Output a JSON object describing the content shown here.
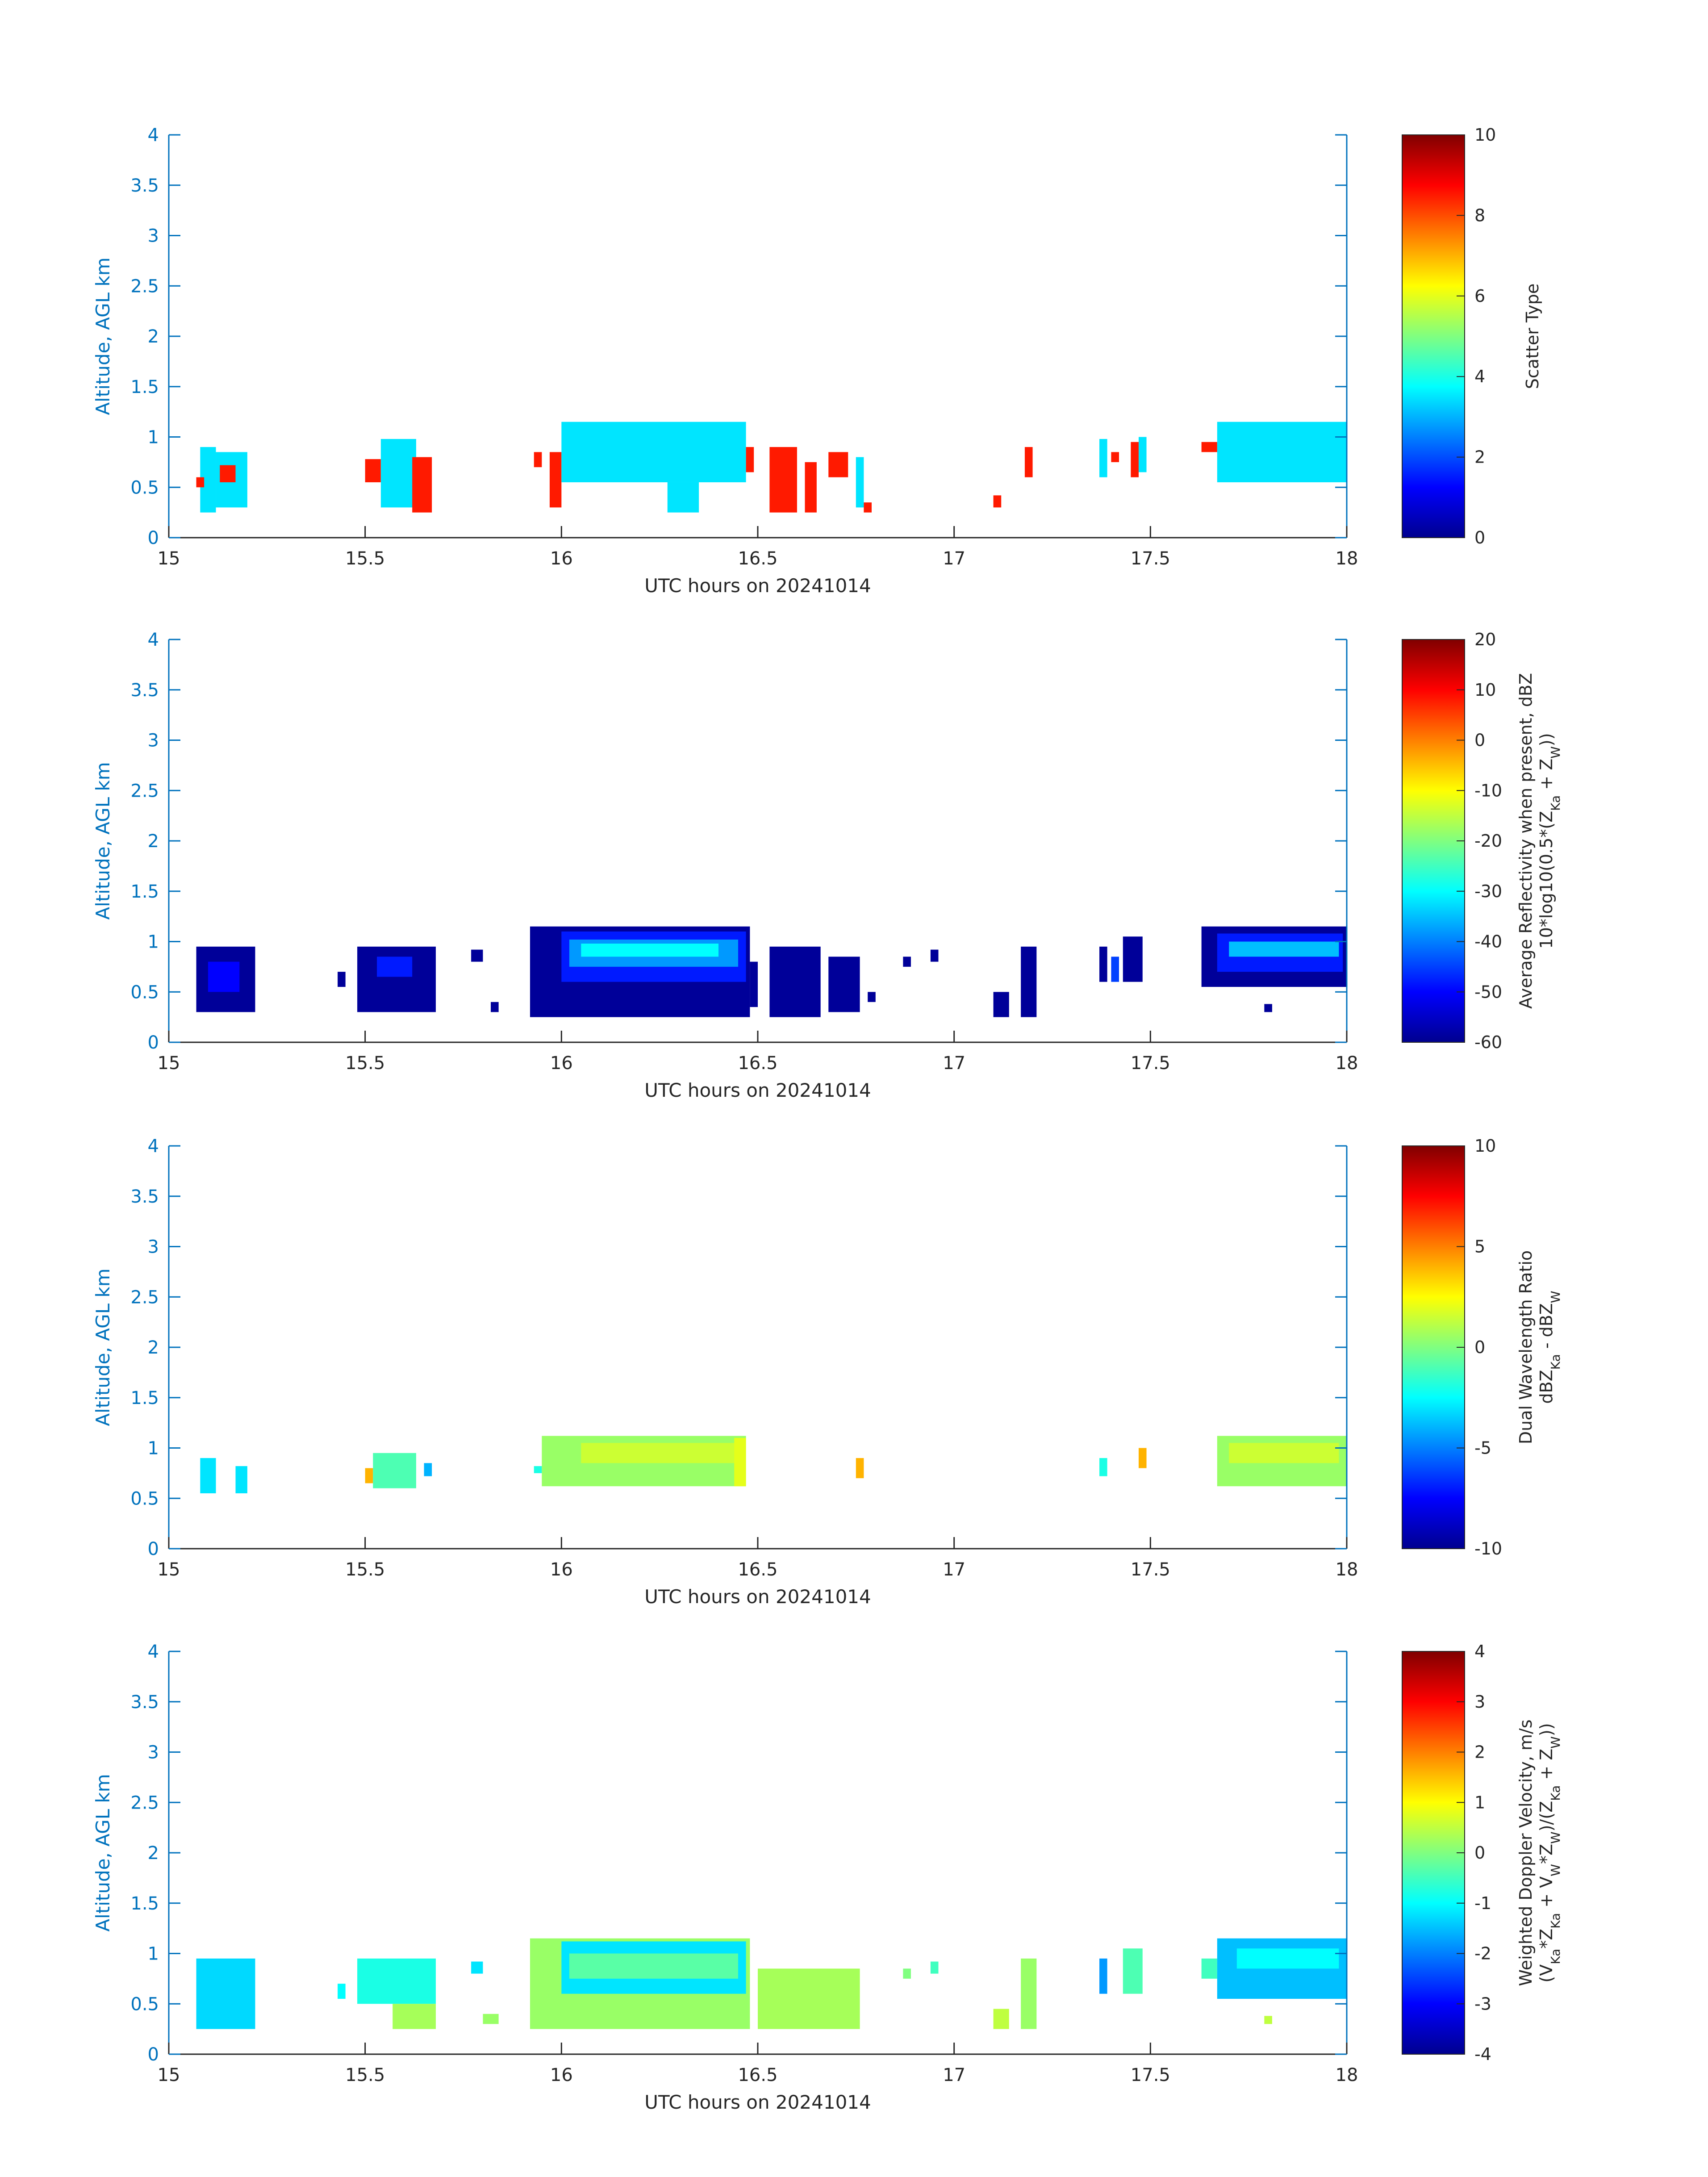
{
  "chart_data": [
    {
      "type": "heatmap",
      "xlabel": "UTC hours on 20241014",
      "ylabel": "Altitude, AGL km",
      "xlim": [
        15,
        18
      ],
      "ylim": [
        0,
        4
      ],
      "xticks": [
        "15",
        "15.5",
        "16",
        "16.5",
        "17",
        "17.5",
        "18"
      ],
      "yticks": [
        "0",
        "0.5",
        "1",
        "1.5",
        "2",
        "2.5",
        "3",
        "3.5",
        "4"
      ],
      "colorbar": {
        "label_lines": [
          "Scatter Type"
        ],
        "clim": [
          0,
          10
        ],
        "ticks": [
          "0",
          "2",
          "4",
          "6",
          "8",
          "10"
        ],
        "colormap": "jet"
      },
      "cells": [
        {
          "x0": 15.08,
          "x1": 15.12,
          "y0": 0.25,
          "y1": 0.9,
          "v": 3.5
        },
        {
          "x0": 15.12,
          "x1": 15.2,
          "y0": 0.3,
          "y1": 0.85,
          "v": 3.5
        },
        {
          "x0": 15.07,
          "x1": 15.09,
          "y0": 0.5,
          "y1": 0.6,
          "v": 8.5
        },
        {
          "x0": 15.13,
          "x1": 15.17,
          "y0": 0.55,
          "y1": 0.72,
          "v": 8.5
        },
        {
          "x0": 15.5,
          "x1": 15.54,
          "y0": 0.55,
          "y1": 0.78,
          "v": 8.5
        },
        {
          "x0": 15.54,
          "x1": 15.63,
          "y0": 0.3,
          "y1": 0.98,
          "v": 3.5
        },
        {
          "x0": 15.62,
          "x1": 15.67,
          "y0": 0.25,
          "y1": 0.8,
          "v": 8.5
        },
        {
          "x0": 15.93,
          "x1": 15.95,
          "y0": 0.7,
          "y1": 0.85,
          "v": 8.5
        },
        {
          "x0": 15.97,
          "x1": 16.0,
          "y0": 0.3,
          "y1": 0.85,
          "v": 8.5
        },
        {
          "x0": 16.0,
          "x1": 16.47,
          "y0": 0.55,
          "y1": 1.15,
          "v": 3.5
        },
        {
          "x0": 16.27,
          "x1": 16.35,
          "y0": 0.25,
          "y1": 0.55,
          "v": 3.5
        },
        {
          "x0": 16.47,
          "x1": 16.49,
          "y0": 0.65,
          "y1": 0.9,
          "v": 8.5
        },
        {
          "x0": 16.53,
          "x1": 16.6,
          "y0": 0.25,
          "y1": 0.9,
          "v": 8.5
        },
        {
          "x0": 16.62,
          "x1": 16.65,
          "y0": 0.25,
          "y1": 0.75,
          "v": 8.5
        },
        {
          "x0": 16.68,
          "x1": 16.73,
          "y0": 0.6,
          "y1": 0.85,
          "v": 8.5
        },
        {
          "x0": 16.77,
          "x1": 16.79,
          "y0": 0.25,
          "y1": 0.35,
          "v": 8.5
        },
        {
          "x0": 16.75,
          "x1": 16.77,
          "y0": 0.3,
          "y1": 0.8,
          "v": 3.5
        },
        {
          "x0": 17.1,
          "x1": 17.12,
          "y0": 0.3,
          "y1": 0.42,
          "v": 8.5
        },
        {
          "x0": 17.18,
          "x1": 17.2,
          "y0": 0.6,
          "y1": 0.9,
          "v": 8.5
        },
        {
          "x0": 17.37,
          "x1": 17.39,
          "y0": 0.6,
          "y1": 0.98,
          "v": 3.5
        },
        {
          "x0": 17.4,
          "x1": 17.42,
          "y0": 0.75,
          "y1": 0.85,
          "v": 8.5
        },
        {
          "x0": 17.45,
          "x1": 17.47,
          "y0": 0.6,
          "y1": 0.95,
          "v": 8.5
        },
        {
          "x0": 17.47,
          "x1": 17.49,
          "y0": 0.65,
          "y1": 1.0,
          "v": 3.5
        },
        {
          "x0": 17.63,
          "x1": 17.67,
          "y0": 0.85,
          "y1": 0.95,
          "v": 8.5
        },
        {
          "x0": 17.67,
          "x1": 18.0,
          "y0": 0.55,
          "y1": 1.15,
          "v": 3.5
        }
      ]
    },
    {
      "type": "heatmap",
      "xlabel": "UTC hours on 20241014",
      "ylabel": "Altitude, AGL km",
      "xlim": [
        15,
        18
      ],
      "ylim": [
        0,
        4
      ],
      "xticks": [
        "15",
        "15.5",
        "16",
        "16.5",
        "17",
        "17.5",
        "18"
      ],
      "yticks": [
        "0",
        "0.5",
        "1",
        "1.5",
        "2",
        "2.5",
        "3",
        "3.5",
        "4"
      ],
      "colorbar": {
        "label_lines": [
          "Average Reflectivity when present, dBZ",
          "10*log10(0.5*(Z_Ka + Z_W))"
        ],
        "clim": [
          -60,
          20
        ],
        "ticks": [
          "-60",
          "-50",
          "-40",
          "-30",
          "-20",
          "-10",
          "0",
          "10",
          "20"
        ],
        "colormap": "jet"
      },
      "cells": [
        {
          "x0": 15.07,
          "x1": 15.22,
          "y0": 0.3,
          "y1": 0.95,
          "v": -58
        },
        {
          "x0": 15.1,
          "x1": 15.18,
          "y0": 0.5,
          "y1": 0.8,
          "v": -50
        },
        {
          "x0": 15.43,
          "x1": 15.45,
          "y0": 0.55,
          "y1": 0.7,
          "v": -58
        },
        {
          "x0": 15.48,
          "x1": 15.68,
          "y0": 0.3,
          "y1": 0.95,
          "v": -58
        },
        {
          "x0": 15.53,
          "x1": 15.62,
          "y0": 0.65,
          "y1": 0.85,
          "v": -48
        },
        {
          "x0": 15.77,
          "x1": 15.8,
          "y0": 0.8,
          "y1": 0.92,
          "v": -58
        },
        {
          "x0": 15.82,
          "x1": 15.84,
          "y0": 0.3,
          "y1": 0.4,
          "v": -58
        },
        {
          "x0": 15.92,
          "x1": 16.48,
          "y0": 0.25,
          "y1": 1.15,
          "v": -58
        },
        {
          "x0": 16.0,
          "x1": 16.47,
          "y0": 0.6,
          "y1": 1.1,
          "v": -48
        },
        {
          "x0": 16.02,
          "x1": 16.45,
          "y0": 0.75,
          "y1": 1.02,
          "v": -38
        },
        {
          "x0": 16.05,
          "x1": 16.4,
          "y0": 0.85,
          "y1": 0.98,
          "v": -30
        },
        {
          "x0": 16.48,
          "x1": 16.5,
          "y0": 0.35,
          "y1": 0.8,
          "v": -58
        },
        {
          "x0": 16.53,
          "x1": 16.66,
          "y0": 0.25,
          "y1": 0.95,
          "v": -58
        },
        {
          "x0": 16.68,
          "x1": 16.76,
          "y0": 0.3,
          "y1": 0.85,
          "v": -58
        },
        {
          "x0": 16.78,
          "x1": 16.8,
          "y0": 0.4,
          "y1": 0.5,
          "v": -58
        },
        {
          "x0": 16.87,
          "x1": 16.89,
          "y0": 0.75,
          "y1": 0.85,
          "v": -58
        },
        {
          "x0": 16.94,
          "x1": 16.96,
          "y0": 0.8,
          "y1": 0.92,
          "v": -58
        },
        {
          "x0": 17.1,
          "x1": 17.14,
          "y0": 0.25,
          "y1": 0.5,
          "v": -58
        },
        {
          "x0": 17.17,
          "x1": 17.21,
          "y0": 0.25,
          "y1": 0.95,
          "v": -58
        },
        {
          "x0": 17.37,
          "x1": 17.39,
          "y0": 0.6,
          "y1": 0.95,
          "v": -58
        },
        {
          "x0": 17.4,
          "x1": 17.42,
          "y0": 0.6,
          "y1": 0.85,
          "v": -45
        },
        {
          "x0": 17.43,
          "x1": 17.48,
          "y0": 0.6,
          "y1": 1.05,
          "v": -58
        },
        {
          "x0": 17.63,
          "x1": 18.0,
          "y0": 0.55,
          "y1": 1.15,
          "v": -58
        },
        {
          "x0": 17.67,
          "x1": 17.99,
          "y0": 0.7,
          "y1": 1.08,
          "v": -48
        },
        {
          "x0": 17.7,
          "x1": 17.98,
          "y0": 0.85,
          "y1": 1.0,
          "v": -35
        },
        {
          "x0": 17.79,
          "x1": 17.81,
          "y0": 0.3,
          "y1": 0.38,
          "v": -58
        }
      ]
    },
    {
      "type": "heatmap",
      "xlabel": "UTC hours on 20241014",
      "ylabel": "Altitude, AGL km",
      "xlim": [
        15,
        18
      ],
      "ylim": [
        0,
        4
      ],
      "xticks": [
        "15",
        "15.5",
        "16",
        "16.5",
        "17",
        "17.5",
        "18"
      ],
      "yticks": [
        "0",
        "0.5",
        "1",
        "1.5",
        "2",
        "2.5",
        "3",
        "3.5",
        "4"
      ],
      "colorbar": {
        "label_lines": [
          "Dual Wavelength Ratio",
          "dBZ_Ka - dBZ_W"
        ],
        "clim": [
          -10,
          10
        ],
        "ticks": [
          "-10",
          "-5",
          "0",
          "5",
          "10"
        ],
        "colormap": "jet"
      },
      "cells": [
        {
          "x0": 15.08,
          "x1": 15.12,
          "y0": 0.55,
          "y1": 0.9,
          "v": -3
        },
        {
          "x0": 15.17,
          "x1": 15.2,
          "y0": 0.55,
          "y1": 0.82,
          "v": -3
        },
        {
          "x0": 15.5,
          "x1": 15.52,
          "y0": 0.65,
          "y1": 0.8,
          "v": 4
        },
        {
          "x0": 15.52,
          "x1": 15.63,
          "y0": 0.6,
          "y1": 0.95,
          "v": -1
        },
        {
          "x0": 15.65,
          "x1": 15.67,
          "y0": 0.72,
          "y1": 0.85,
          "v": -4
        },
        {
          "x0": 15.93,
          "x1": 15.95,
          "y0": 0.75,
          "y1": 0.82,
          "v": -2
        },
        {
          "x0": 15.95,
          "x1": 16.47,
          "y0": 0.62,
          "y1": 1.12,
          "v": 0.5
        },
        {
          "x0": 16.05,
          "x1": 16.45,
          "y0": 0.85,
          "y1": 1.05,
          "v": 1.5
        },
        {
          "x0": 16.44,
          "x1": 16.47,
          "y0": 0.62,
          "y1": 1.1,
          "v": 2
        },
        {
          "x0": 16.75,
          "x1": 16.77,
          "y0": 0.7,
          "y1": 0.9,
          "v": 4
        },
        {
          "x0": 17.37,
          "x1": 17.39,
          "y0": 0.72,
          "y1": 0.9,
          "v": -2
        },
        {
          "x0": 17.47,
          "x1": 17.49,
          "y0": 0.8,
          "y1": 1.0,
          "v": 4
        },
        {
          "x0": 17.67,
          "x1": 18.0,
          "y0": 0.62,
          "y1": 1.12,
          "v": 0.5
        },
        {
          "x0": 17.7,
          "x1": 17.98,
          "y0": 0.85,
          "y1": 1.05,
          "v": 1.5
        }
      ]
    },
    {
      "type": "heatmap",
      "xlabel": "UTC hours on 20241014",
      "ylabel": "Altitude, AGL km",
      "xlim": [
        15,
        18
      ],
      "ylim": [
        0,
        4
      ],
      "xticks": [
        "15",
        "15.5",
        "16",
        "16.5",
        "17",
        "17.5",
        "18"
      ],
      "yticks": [
        "0",
        "0.5",
        "1",
        "1.5",
        "2",
        "2.5",
        "3",
        "3.5",
        "4"
      ],
      "colorbar": {
        "label_lines": [
          "Weighted Doppler Velocity, m/s",
          "(V_Ka*Z_Ka + V_W*Z_W)/(Z_Ka + Z_W))"
        ],
        "clim": [
          -4,
          4
        ],
        "ticks": [
          "-4",
          "-3",
          "-2",
          "-1",
          "0",
          "1",
          "2",
          "3",
          "4"
        ],
        "colormap": "jet"
      },
      "cells": [
        {
          "x0": 15.07,
          "x1": 15.22,
          "y0": 0.25,
          "y1": 0.95,
          "v": -1.3
        },
        {
          "x0": 15.43,
          "x1": 15.45,
          "y0": 0.55,
          "y1": 0.7,
          "v": -1.0
        },
        {
          "x0": 15.48,
          "x1": 15.68,
          "y0": 0.5,
          "y1": 0.95,
          "v": -0.8
        },
        {
          "x0": 15.57,
          "x1": 15.68,
          "y0": 0.25,
          "y1": 0.5,
          "v": 0.3
        },
        {
          "x0": 15.77,
          "x1": 15.8,
          "y0": 0.8,
          "y1": 0.92,
          "v": -1.2
        },
        {
          "x0": 15.8,
          "x1": 15.84,
          "y0": 0.3,
          "y1": 0.4,
          "v": 0.2
        },
        {
          "x0": 15.92,
          "x1": 16.48,
          "y0": 0.25,
          "y1": 1.15,
          "v": 0.2
        },
        {
          "x0": 16.0,
          "x1": 16.47,
          "y0": 0.6,
          "y1": 1.12,
          "v": -1.2
        },
        {
          "x0": 16.02,
          "x1": 16.45,
          "y0": 0.75,
          "y1": 1.0,
          "v": -0.3
        },
        {
          "x0": 16.5,
          "x1": 16.76,
          "y0": 0.25,
          "y1": 0.85,
          "v": 0.3
        },
        {
          "x0": 16.87,
          "x1": 16.89,
          "y0": 0.75,
          "y1": 0.85,
          "v": 0.0
        },
        {
          "x0": 16.94,
          "x1": 16.96,
          "y0": 0.8,
          "y1": 0.92,
          "v": -0.5
        },
        {
          "x0": 17.1,
          "x1": 17.14,
          "y0": 0.25,
          "y1": 0.45,
          "v": 0.5
        },
        {
          "x0": 17.17,
          "x1": 17.21,
          "y0": 0.25,
          "y1": 0.95,
          "v": 0.2
        },
        {
          "x0": 17.37,
          "x1": 17.39,
          "y0": 0.6,
          "y1": 0.95,
          "v": -1.8
        },
        {
          "x0": 17.43,
          "x1": 17.48,
          "y0": 0.6,
          "y1": 1.05,
          "v": -0.4
        },
        {
          "x0": 17.63,
          "x1": 17.67,
          "y0": 0.75,
          "y1": 0.95,
          "v": -0.5
        },
        {
          "x0": 17.67,
          "x1": 18.0,
          "y0": 0.55,
          "y1": 1.15,
          "v": -1.5
        },
        {
          "x0": 17.72,
          "x1": 17.98,
          "y0": 0.85,
          "y1": 1.05,
          "v": -1.0
        },
        {
          "x0": 17.79,
          "x1": 17.81,
          "y0": 0.3,
          "y1": 0.38,
          "v": 0.5
        }
      ]
    }
  ]
}
